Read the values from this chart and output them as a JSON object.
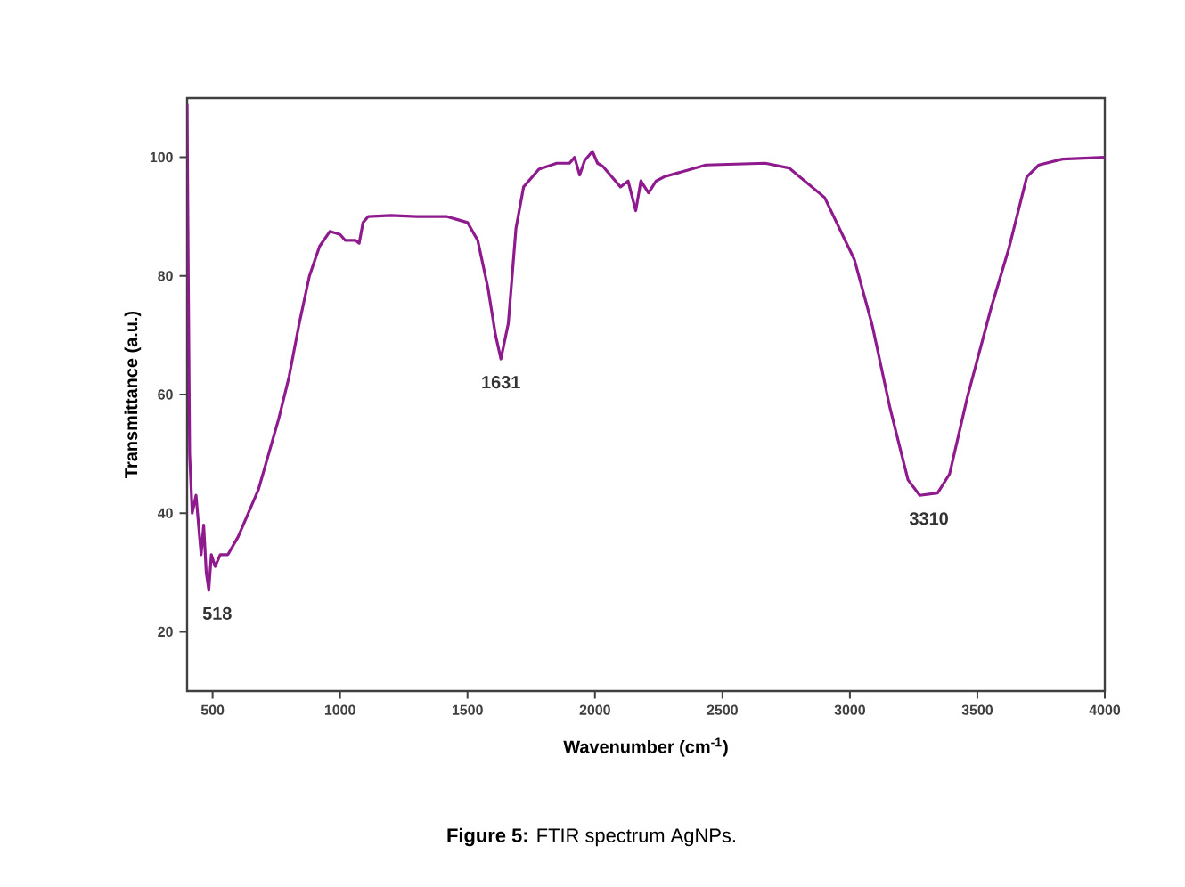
{
  "chart_data": {
    "type": "line",
    "title": "**Figure 5:** FTIR spectrum AgNPs.",
    "xlabel": "Wavenumber (cm$^{-1}$)",
    "ylabel": "Transmittance (a.u.)",
    "color": "#8e1a8e",
    "marker": "none",
    "xlim": [
      400,
      4000
    ],
    "ylim": [
      10,
      110
    ],
    "xticks": [
      500,
      1000,
      1500,
      2000,
      2500,
      3000,
      3500,
      4000
    ],
    "yticks": [
      20,
      40,
      60,
      80,
      100
    ],
    "x": [
      400,
      405,
      410,
      420,
      435,
      445,
      455,
      465,
      475,
      485,
      495,
      510,
      530,
      560,
      600,
      640,
      680,
      720,
      760,
      800,
      840,
      880,
      920,
      960,
      1000,
      1020,
      1060,
      1075,
      1090,
      1110,
      1200,
      1300,
      1420,
      1500,
      1540,
      1580,
      1610,
      1631,
      1660,
      1690,
      1720,
      1780,
      1850,
      1900,
      1920,
      1940,
      1960,
      1990,
      2010,
      2030,
      2060,
      2100,
      2130,
      2160,
      2180,
      2210,
      2240,
      2271,
      2435,
      2668,
      2761,
      2901,
      3018,
      3088,
      3158,
      3228,
      3274,
      3344,
      3391,
      3461,
      3554,
      3624,
      3694,
      3741,
      3834,
      4000
    ],
    "values": [
      109,
      78,
      50,
      40,
      43,
      38,
      33,
      38,
      30,
      27,
      33,
      31,
      33,
      33,
      36,
      40,
      44,
      50,
      56,
      63,
      72,
      80,
      85,
      87.5,
      87,
      86,
      86,
      85.5,
      89,
      90,
      90.2,
      90,
      90,
      89,
      86,
      78,
      70,
      66,
      72,
      88,
      95,
      98,
      99,
      99,
      100,
      97,
      99.5,
      101,
      99,
      98.5,
      97,
      95,
      96,
      91,
      96,
      94,
      96,
      96.7,
      98.7,
      99,
      98.2,
      93.2,
      82.7,
      71.6,
      57.6,
      45.6,
      43,
      43.4,
      46.6,
      59.6,
      74.6,
      84.7,
      96.7,
      98.7,
      99.7,
      100
    ],
    "annotations": [
      {
        "text": "518",
        "x": 518,
        "y": 27
      },
      {
        "text": "1631",
        "x": 1631,
        "y": 66
      },
      {
        "text": "3310",
        "x": 3310,
        "y": 43
      }
    ]
  }
}
